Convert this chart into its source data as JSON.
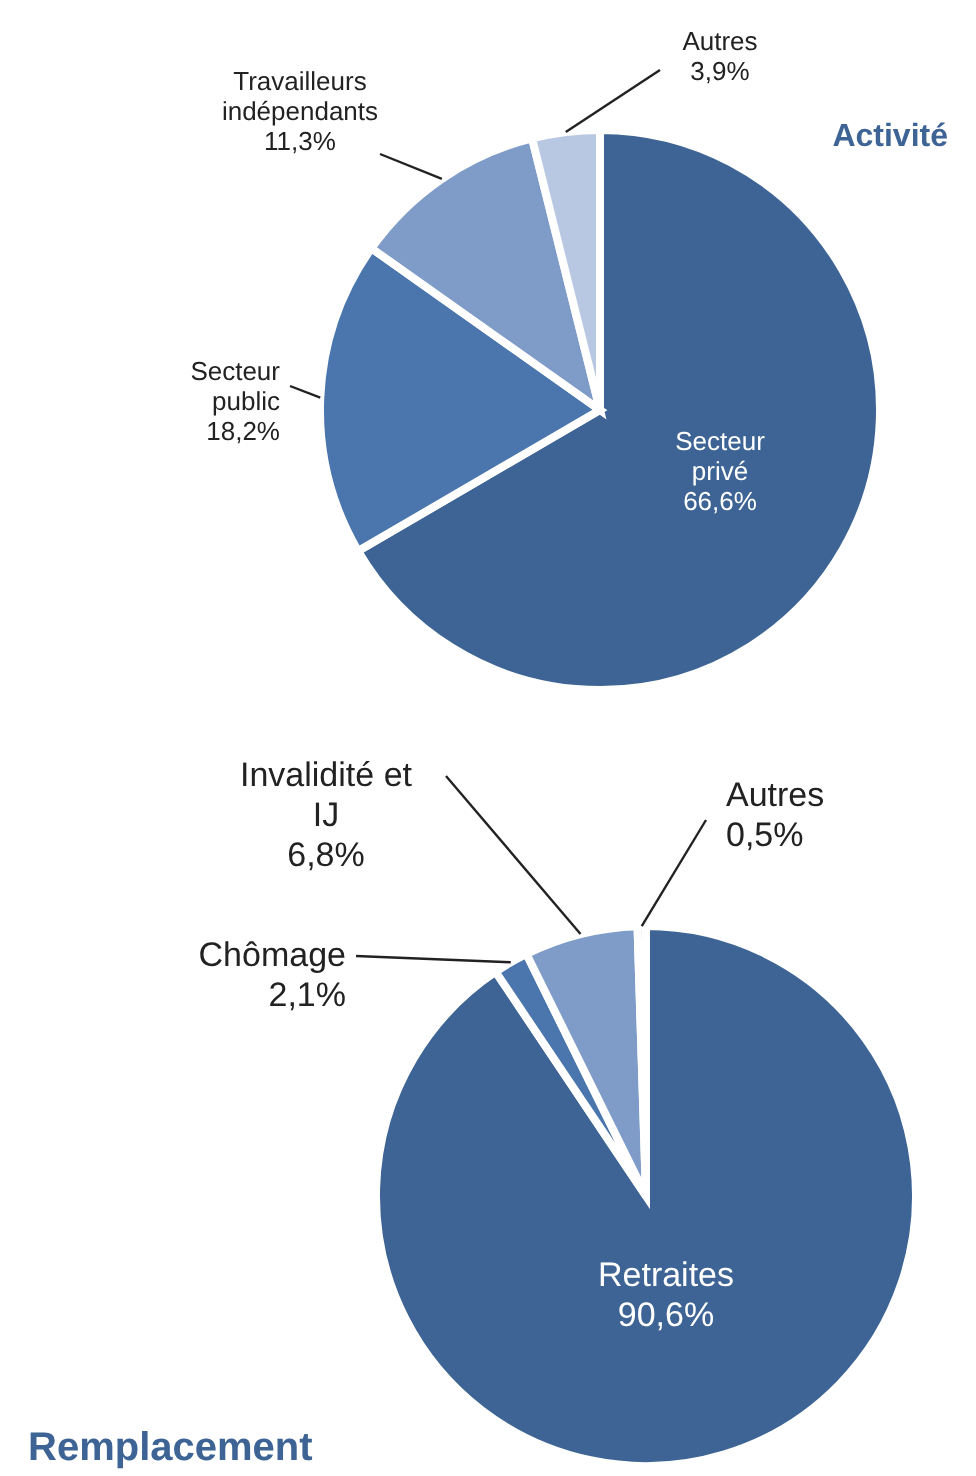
{
  "chart_data": [
    {
      "type": "pie",
      "title": "Activité",
      "categories": [
        "Secteur privé",
        "Secteur public",
        "Travailleurs indépendants",
        "Autres"
      ],
      "values": [
        66.6,
        18.2,
        11.3,
        3.9
      ],
      "value_labels": [
        "66,6%",
        "18,2%",
        "11,3%",
        "3,9%"
      ],
      "colors": [
        "#3d6494",
        "#4a76ad",
        "#7f9cc8",
        "#b9c8e2"
      ]
    },
    {
      "type": "pie",
      "title": "Remplacement",
      "categories": [
        "Retraites",
        "Chômage",
        "Invalidité et IJ",
        "Autres"
      ],
      "values": [
        90.6,
        2.1,
        6.8,
        0.5
      ],
      "value_labels": [
        "90,6%",
        "2,1%",
        "6,8%",
        "0,5%"
      ],
      "colors": [
        "#3d6494",
        "#4a76ad",
        "#7f9cc8",
        "#b9c8e2"
      ]
    }
  ]
}
